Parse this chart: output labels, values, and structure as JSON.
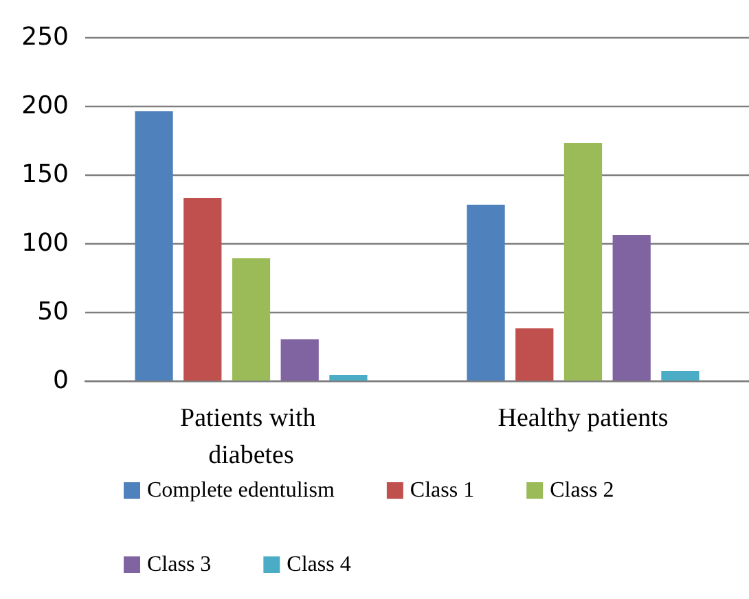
{
  "chart_data": {
    "type": "bar",
    "categories": [
      "Patients with diabetes",
      "Healthy patients"
    ],
    "series": [
      {
        "name": "Complete edentulism",
        "color": "#4f81bd",
        "values": [
          196,
          128
        ]
      },
      {
        "name": "Class 1",
        "color": "#c0504d",
        "values": [
          133,
          38
        ]
      },
      {
        "name": "Class 2",
        "color": "#9bbb59",
        "values": [
          89,
          173
        ]
      },
      {
        "name": "Class 3",
        "color": "#8064a2",
        "values": [
          30,
          106
        ]
      },
      {
        "name": "Class 4",
        "color": "#4bacc6",
        "values": [
          4,
          7
        ]
      }
    ],
    "ylim": [
      0,
      250
    ],
    "yticks": [
      0,
      50,
      100,
      150,
      200,
      250
    ],
    "grid": "y",
    "legend": "bottom"
  }
}
